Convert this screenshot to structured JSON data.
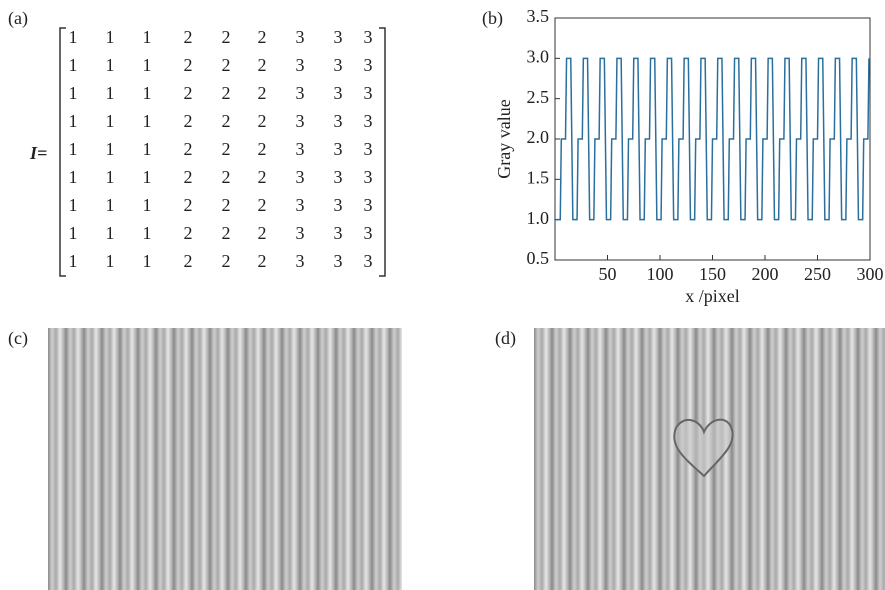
{
  "panels": {
    "a": "(a)",
    "b": "(b)",
    "c": "(c)",
    "d": "(d)"
  },
  "matrix": {
    "label": "I=",
    "rows": [
      [
        1,
        1,
        1,
        2,
        2,
        2,
        3,
        3,
        3
      ],
      [
        1,
        1,
        1,
        2,
        2,
        2,
        3,
        3,
        3
      ],
      [
        1,
        1,
        1,
        2,
        2,
        2,
        3,
        3,
        3
      ],
      [
        1,
        1,
        1,
        2,
        2,
        2,
        3,
        3,
        3
      ],
      [
        1,
        1,
        1,
        2,
        2,
        2,
        3,
        3,
        3
      ],
      [
        1,
        1,
        1,
        2,
        2,
        2,
        3,
        3,
        3
      ],
      [
        1,
        1,
        1,
        2,
        2,
        2,
        3,
        3,
        3
      ],
      [
        1,
        1,
        1,
        2,
        2,
        2,
        3,
        3,
        3
      ],
      [
        1,
        1,
        1,
        2,
        2,
        2,
        3,
        3,
        3
      ]
    ]
  },
  "chart_data": {
    "type": "line",
    "xlabel": "x /pixel",
    "ylabel": "Gray value",
    "color": "#2b6f9e",
    "xlim": [
      0,
      300
    ],
    "xticks": [
      50,
      100,
      150,
      200,
      250,
      300
    ],
    "ylim": [
      0.5,
      3.5
    ],
    "yticks": [
      0.5,
      {
        "value": 1,
        "label": "1.0"
      },
      1.5,
      {
        "value": 2,
        "label": "2.0"
      },
      2.5,
      {
        "value": 3,
        "label": "3.0"
      },
      3.5
    ],
    "x": [
      1,
      5,
      6,
      10,
      11,
      15,
      17,
      21,
      22,
      26,
      27,
      31,
      33,
      37,
      38,
      42,
      43,
      47,
      49,
      53,
      54,
      58,
      59,
      63,
      65,
      69,
      70,
      74,
      75,
      79,
      81,
      85,
      86,
      90,
      91,
      95,
      97,
      101,
      102,
      106,
      107,
      111,
      113,
      117,
      118,
      122,
      123,
      127,
      129,
      133,
      134,
      138,
      139,
      143,
      145,
      149,
      150,
      154,
      155,
      159,
      161,
      165,
      166,
      170,
      171,
      175,
      177,
      181,
      182,
      186,
      187,
      191,
      193,
      197,
      198,
      202,
      203,
      207,
      209,
      213,
      214,
      218,
      219,
      223,
      225,
      229,
      230,
      234,
      235,
      239,
      241,
      245,
      246,
      250,
      251,
      255,
      257,
      261,
      262,
      266,
      267,
      271,
      273,
      277,
      278,
      282,
      283,
      287,
      289,
      293,
      294,
      298,
      299
    ],
    "values": [
      1,
      1,
      2,
      2,
      3,
      3,
      1,
      1,
      2,
      2,
      3,
      3,
      1,
      1,
      2,
      2,
      3,
      3,
      1,
      1,
      2,
      2,
      3,
      3,
      1,
      1,
      2,
      2,
      3,
      3,
      1,
      1,
      2,
      2,
      3,
      3,
      1,
      1,
      2,
      2,
      3,
      3,
      1,
      1,
      2,
      2,
      3,
      3,
      1,
      1,
      2,
      2,
      3,
      3,
      1,
      1,
      2,
      2,
      3,
      3,
      1,
      1,
      2,
      2,
      3,
      3,
      1,
      1,
      2,
      2,
      3,
      3,
      1,
      1,
      2,
      2,
      3,
      3,
      1,
      1,
      2,
      2,
      3,
      3,
      1,
      1,
      2,
      2,
      3,
      3,
      1,
      1,
      2,
      2,
      3,
      3,
      1,
      1,
      2,
      2,
      3,
      3,
      1,
      1,
      2,
      2,
      3,
      3,
      1,
      1,
      2,
      2,
      3
    ]
  }
}
